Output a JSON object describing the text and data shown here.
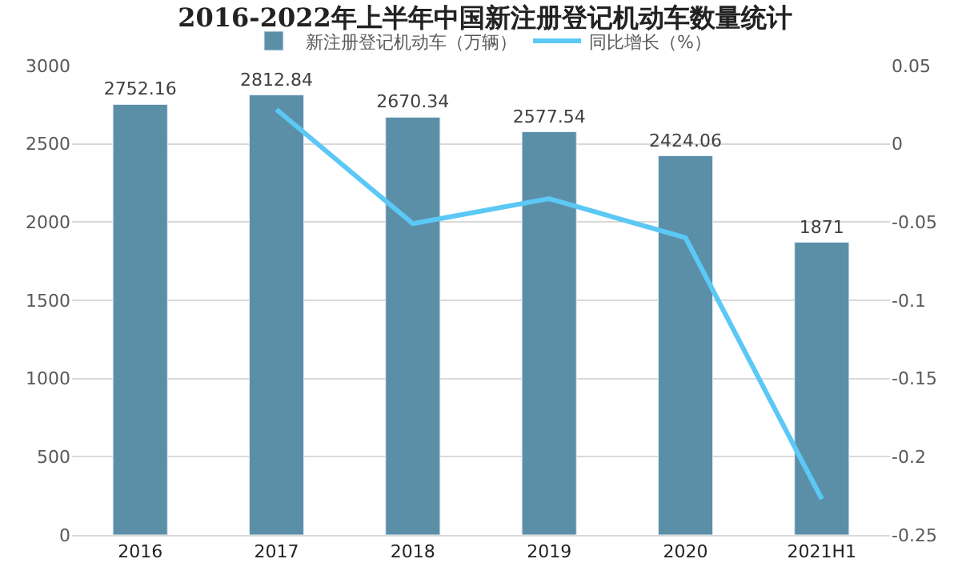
{
  "chart_data": {
    "type": "bar",
    "title": "2016-2022年上半年中国新注册登记机动车数量统计",
    "categories": [
      "2016",
      "2017",
      "2018",
      "2019",
      "2020",
      "2021H1"
    ],
    "series": [
      {
        "name": "新注册登记机动车（万辆）",
        "color": "#5b8fa8",
        "values": [
          2752.16,
          2812.84,
          2670.34,
          2577.54,
          2424.06,
          1871
        ],
        "value_labels": [
          "2752.16",
          "2812.84",
          "2670.34",
          "2577.54",
          "2424.06",
          "1871"
        ]
      },
      {
        "name": "同比增长（%）",
        "type": "line",
        "axis": "y2",
        "color": "#5bc8f5",
        "values": [
          null,
          0.022,
          -0.051,
          -0.035,
          -0.06,
          -0.227
        ]
      }
    ],
    "ylim": [
      0,
      3000
    ],
    "yticks": [
      0,
      500,
      1000,
      1500,
      2000,
      2500,
      3000
    ],
    "y2lim": [
      -0.25,
      0.05
    ],
    "y2ticks": [
      -0.25,
      -0.2,
      -0.15,
      -0.1,
      -0.05,
      0,
      0.05
    ],
    "grid": "y",
    "legend": "top",
    "marker": "none"
  }
}
